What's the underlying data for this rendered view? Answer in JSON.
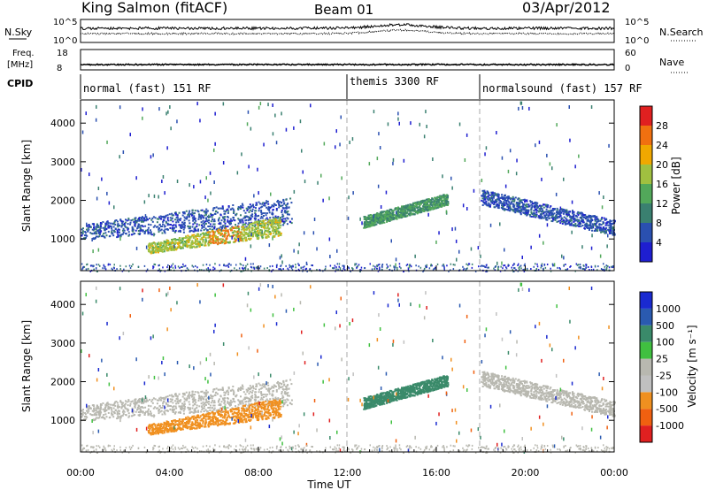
{
  "header": {
    "station": "King Salmon (fitACF)",
    "beam": "Beam 01",
    "date": "03/Apr/2012"
  },
  "noise_panel": {
    "left_label": "N.Sky",
    "right_label": "N.Search",
    "left_ticks": [
      "10^5",
      "10^0"
    ],
    "right_ticks": [
      "10^5",
      "10^0"
    ]
  },
  "freq_panel": {
    "left_label_1": "Freq.",
    "left_label_2": "[MHz]",
    "right_label": "Nave",
    "left_ticks": [
      "18",
      "8"
    ],
    "right_ticks": [
      "60",
      "0"
    ]
  },
  "cpid": {
    "label": "CPID",
    "modes": [
      {
        "name": "normal (fast) 151 RF",
        "start_hour": 0
      },
      {
        "name": "themis 3300 RF",
        "start_hour": 12
      },
      {
        "name": "normalsound (fast) 157 RF",
        "start_hour": 18
      }
    ]
  },
  "x_axis": {
    "title": "Time UT",
    "ticks": [
      "00:00",
      "04:00",
      "08:00",
      "12:00",
      "16:00",
      "20:00",
      "00:00"
    ]
  },
  "power_colorbar": {
    "title": "Power [dB]",
    "labels": [
      "4",
      "8",
      "12",
      "16",
      "20",
      "24",
      "28"
    ],
    "colors": [
      "#1e1ed0",
      "#2a50b0",
      "#3a8070",
      "#52a85a",
      "#a0c040",
      "#f0a800",
      "#f07010",
      "#e02020"
    ]
  },
  "velocity_colorbar": {
    "title": "Velocity [m s⁻¹]",
    "labels": [
      "1000",
      "500",
      "100",
      "25",
      "-25",
      "-100",
      "-500",
      "-1000"
    ],
    "colors": [
      "#1a2ad0",
      "#2a5ab0",
      "#3a8a6a",
      "#40c040",
      "#b8b8b0",
      "#c0c0c0",
      "#f09020",
      "#f06010",
      "#e02020"
    ]
  },
  "chart_data": [
    {
      "type": "heatmap",
      "title": "Power",
      "xlabel": "Time UT",
      "ylabel": "Slant Range [km]",
      "x_range_hours": [
        0,
        24
      ],
      "ylim": [
        180,
        4600
      ],
      "y_ticks": [
        1000,
        2000,
        3000,
        4000
      ],
      "colorbar_range_db": [
        0,
        32
      ],
      "scatter_regions": [
        {
          "t": [
            0.0,
            9.5
          ],
          "r_lo": [
            1000,
            1400
          ],
          "r_hi": [
            1400,
            2100
          ],
          "dominant_db": 6
        },
        {
          "t": [
            3.0,
            9.0
          ],
          "r_lo": [
            640,
            1100
          ],
          "r_hi": [
            900,
            1600
          ],
          "dominant_db": 18,
          "peak_db": 28
        },
        {
          "t": [
            12.7,
            16.5
          ],
          "r_lo": [
            1300,
            1900
          ],
          "r_hi": [
            1600,
            2200
          ],
          "dominant_db": 12
        },
        {
          "t": [
            18.0,
            24.0
          ],
          "r_lo": [
            1900,
            1100
          ],
          "r_hi": [
            2300,
            1500
          ],
          "dominant_db": 6
        }
      ]
    },
    {
      "type": "heatmap",
      "title": "Velocity",
      "xlabel": "Time UT",
      "ylabel": "Slant Range [km]",
      "x_range_hours": [
        0,
        24
      ],
      "ylim": [
        180,
        4600
      ],
      "y_ticks": [
        1000,
        2000,
        3000,
        4000
      ],
      "colorbar_range_ms": [
        -1000,
        1000
      ],
      "scatter_regions": [
        {
          "t": [
            0.0,
            9.5
          ],
          "r_lo": [
            1000,
            1400
          ],
          "r_hi": [
            1400,
            2100
          ],
          "dominant_ms": 0
        },
        {
          "t": [
            3.0,
            9.5
          ],
          "r_lo": [
            640,
            1100
          ],
          "r_hi": [
            900,
            1600
          ],
          "dominant_ms": -300
        },
        {
          "t": [
            12.7,
            16.5
          ],
          "r_lo": [
            1300,
            1900
          ],
          "r_hi": [
            1600,
            2200
          ],
          "dominant_ms": 300
        },
        {
          "t": [
            18.0,
            24.0
          ],
          "r_lo": [
            1900,
            1100
          ],
          "r_hi": [
            2300,
            1500
          ],
          "dominant_ms": 0
        }
      ]
    }
  ]
}
